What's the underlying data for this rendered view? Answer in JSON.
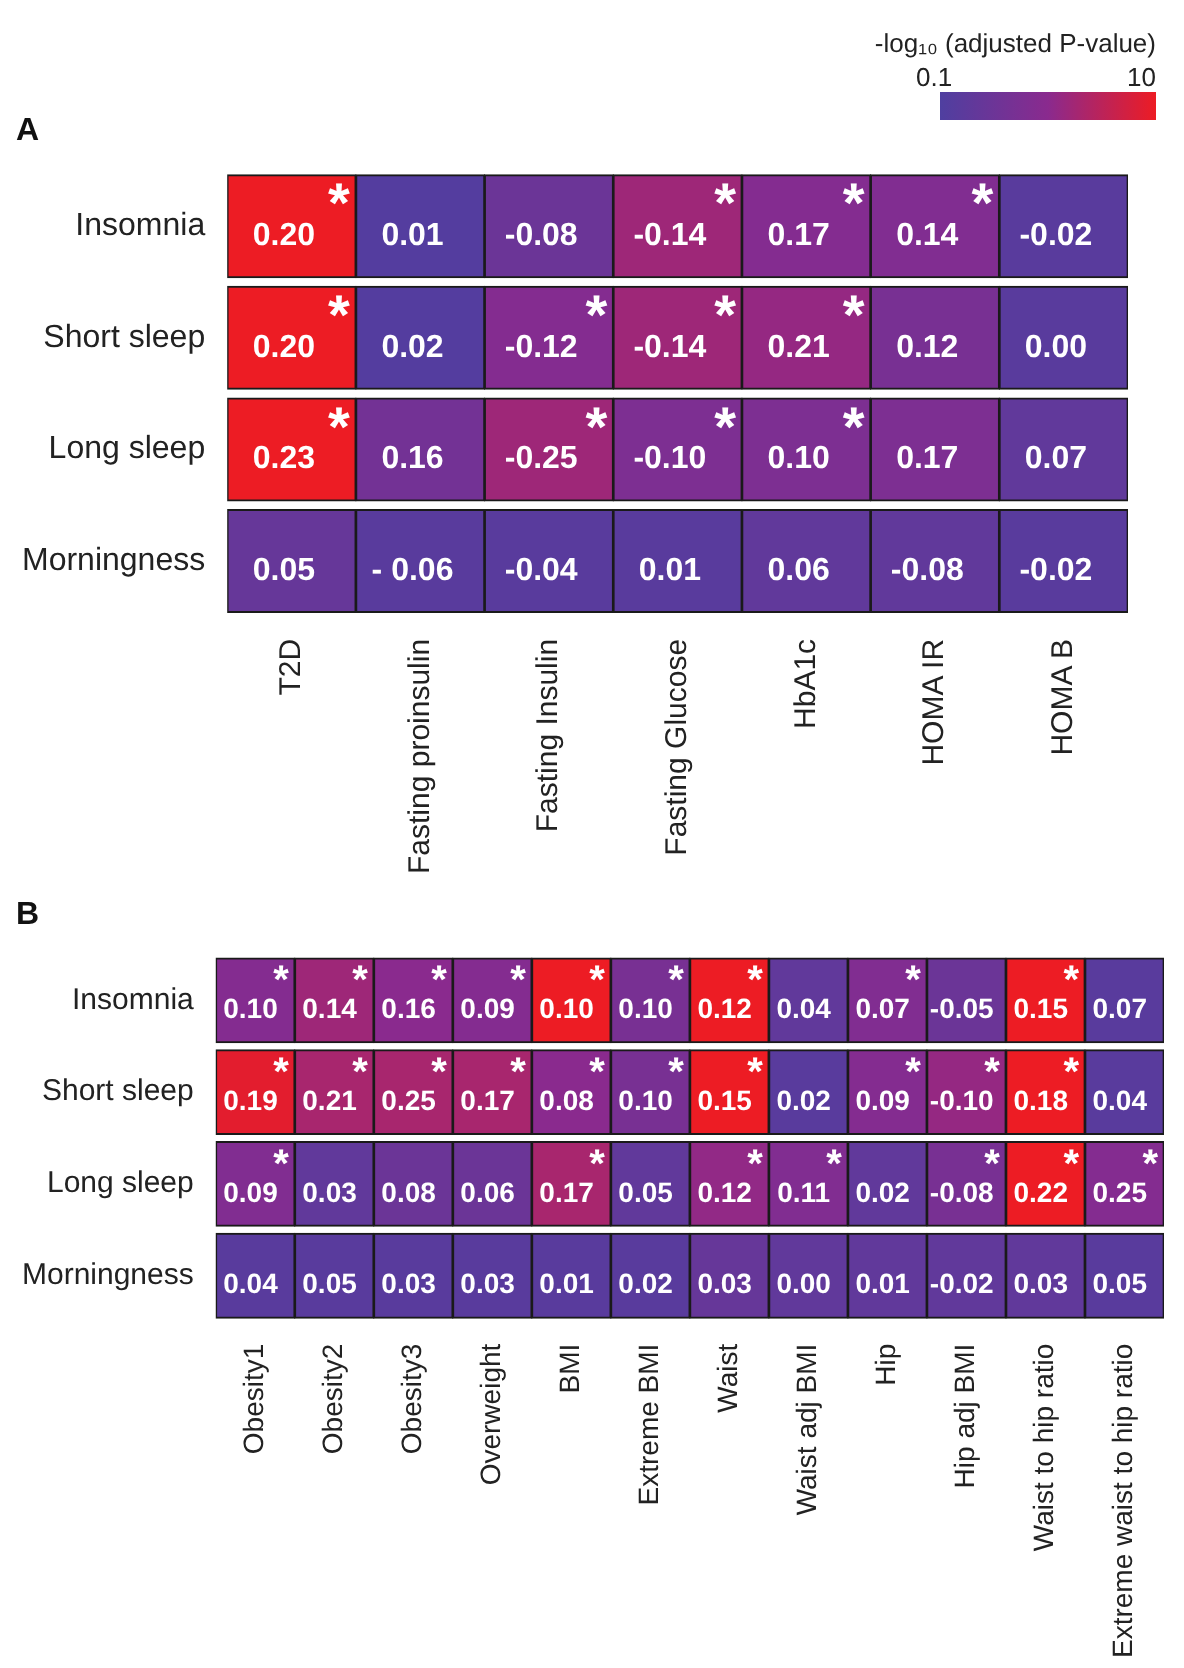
{
  "chart_data": [
    {
      "type": "heatmap",
      "title": "A",
      "data_labels": true,
      "annotations": [
        "-log₁₀ (adjusted P-value)",
        "0.1",
        "10"
      ],
      "categories": [
        "T2D",
        "Fasting proinsulin",
        "Fasting Insulin",
        "Fasting Glucose",
        "HbA1c",
        "HOMA IR",
        "HOMA B"
      ],
      "y_categories": [
        "Insomnia",
        "Short sleep",
        "Long sleep",
        "Morningness"
      ],
      "cells": [
        [
          0.2,
          0.01,
          -0.08,
          -0.14,
          0.17,
          0.14,
          -0.02
        ],
        [
          0.2,
          0.02,
          -0.12,
          -0.14,
          0.21,
          0.12,
          0.0
        ],
        [
          0.23,
          0.16,
          -0.25,
          -0.1,
          0.1,
          0.17,
          0.07
        ],
        [
          0.05,
          -0.06,
          -0.04,
          0.01,
          0.06,
          -0.08,
          -0.02
        ]
      ],
      "cell_labels": [
        [
          "0.20*",
          "0.01",
          "-0.08",
          "-0.14*",
          "0.17*",
          "0.14*",
          "-0.02"
        ],
        [
          "0.20*",
          "0.02",
          "-0.12*",
          "-0.14*",
          "0.21*",
          "0.12",
          "0.00"
        ],
        [
          "0.23*",
          "0.16",
          "-0.25*",
          "-0.10*",
          "0.10*",
          "0.17",
          "0.07"
        ],
        [
          "0.05",
          "- 0.06",
          "-0.04",
          "0.01",
          "0.06",
          "-0.08",
          "-0.02"
        ]
      ],
      "colors": [
        [
          "#ed1c24",
          "#543d9f",
          "#6b3597",
          "#9e2778",
          "#842c90",
          "#812d91",
          "#593b9d"
        ],
        [
          "#ed1c24",
          "#543d9f",
          "#842c90",
          "#9e2778",
          "#952882",
          "#783093",
          "#593b9d"
        ],
        [
          "#ed1c24",
          "#733295",
          "#9e2778",
          "#7d2f92",
          "#7d2f92",
          "#7d2f92",
          "#61399b"
        ],
        [
          "#663799",
          "#593b9d",
          "#593b9d",
          "#593b9d",
          "#61399b",
          "#61399b",
          "#593b9d"
        ]
      ]
    },
    {
      "type": "heatmap",
      "title": "B",
      "data_labels": true,
      "categories": [
        "Obesity1",
        "Obesity2",
        "Obesity3",
        "Overweight",
        "BMI",
        "Extreme BMI",
        "Waist",
        "Waist adj BMI",
        "Hip",
        "Hip adj BMI",
        "Waist to hip ratio",
        "Extreme waist to hip ratio"
      ],
      "y_categories": [
        "Insomnia",
        "Short sleep",
        "Long sleep",
        "Morningness"
      ],
      "cells": [
        [
          0.1,
          0.14,
          0.16,
          0.09,
          0.1,
          0.1,
          0.12,
          0.04,
          0.07,
          -0.05,
          0.15,
          0.07
        ],
        [
          0.19,
          0.21,
          0.25,
          0.17,
          0.08,
          0.1,
          0.15,
          0.02,
          0.09,
          -0.1,
          0.18,
          0.04
        ],
        [
          0.09,
          0.03,
          0.08,
          0.06,
          0.17,
          0.05,
          0.12,
          0.11,
          0.02,
          -0.08,
          0.22,
          0.25
        ],
        [
          0.04,
          0.05,
          0.03,
          0.03,
          0.01,
          0.02,
          0.03,
          0.0,
          0.01,
          -0.02,
          0.03,
          0.05
        ]
      ],
      "cell_labels": [
        [
          "0.10*",
          "0.14*",
          "0.16*",
          "0.09*",
          "0.10*",
          "0.10*",
          "0.12*",
          "0.04",
          "0.07*",
          "-0.05",
          "0.15*",
          "0.07"
        ],
        [
          "0.19*",
          "0.21*",
          "0.25*",
          "0.17*",
          "0.08*",
          "0.10*",
          "0.15*",
          "0.02",
          "0.09*",
          "-0.10*",
          "0.18*",
          "0.04"
        ],
        [
          "0.09*",
          "0.03",
          "0.08",
          "0.06",
          "0.17*",
          "0.05",
          "0.12*",
          "0.11*",
          "0.02",
          "-0.08*",
          "0.22*",
          "0.25*"
        ],
        [
          "0.04",
          "0.05",
          "0.03",
          "0.03",
          "0.01",
          "0.02",
          "0.03",
          "0.00",
          "0.01",
          "-0.02",
          "0.03",
          "0.05"
        ]
      ],
      "colors": [
        [
          "#842c90",
          "#9e2778",
          "#8a2a8e",
          "#842c90",
          "#ed1c24",
          "#783093",
          "#ed1c24",
          "#61399b",
          "#812d91",
          "#6b3597",
          "#ed1c24",
          "#593b9d"
        ],
        [
          "#e31d2e",
          "#a8266e",
          "#a8266e",
          "#a8266e",
          "#8a2a8e",
          "#783093",
          "#ed1c24",
          "#593b9d",
          "#842c90",
          "#952882",
          "#ed1c24",
          "#593b9d"
        ],
        [
          "#812d91",
          "#61399b",
          "#6b3597",
          "#6b3597",
          "#a8266e",
          "#61399b",
          "#922986",
          "#812d91",
          "#61399b",
          "#783093",
          "#ed1c24",
          "#842c90"
        ],
        [
          "#593b9d",
          "#593b9d",
          "#593b9d",
          "#593b9d",
          "#593b9d",
          "#593b9d",
          "#663799",
          "#61399b",
          "#61399b",
          "#61399b",
          "#61399b",
          "#593b9d"
        ]
      ]
    }
  ]
}
